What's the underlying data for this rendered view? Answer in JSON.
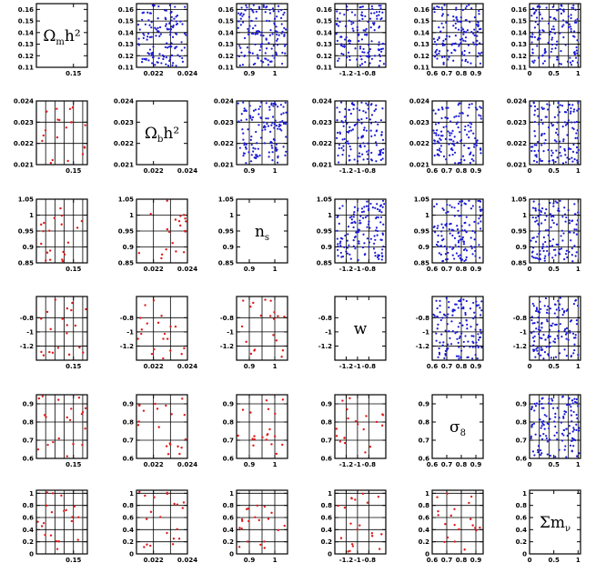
{
  "chart_data": {
    "type": "scatter",
    "grid": true,
    "parameters": [
      {
        "label": "Ωmh²",
        "range": [
          0.11,
          0.165
        ],
        "ticks": [
          0.11,
          0.12,
          0.13,
          0.14,
          0.15,
          0.16
        ],
        "tick_labels": [
          "0.11",
          "0.12",
          "0.13",
          "0.14",
          "0.15",
          "0.16"
        ],
        "x_ticks": [
          0.15
        ],
        "x_tick_labels": [
          "0.15"
        ]
      },
      {
        "label": "Ωbh²",
        "range": [
          0.021,
          0.024
        ],
        "ticks": [
          0.021,
          0.022,
          0.023,
          0.024
        ],
        "tick_labels": [
          "0.021",
          "0.022",
          "0.023",
          "0.024"
        ],
        "x_ticks": [
          0.022,
          0.024
        ],
        "x_tick_labels": [
          "0.022",
          "0.024"
        ]
      },
      {
        "label": "ns",
        "range": [
          0.85,
          1.05
        ],
        "ticks": [
          0.85,
          0.9,
          0.95,
          1,
          1.05
        ],
        "tick_labels": [
          "0.85",
          "0.9",
          "0.95",
          "1",
          "1.05"
        ],
        "x_ticks": [
          0.9,
          1
        ],
        "x_tick_labels": [
          "0.9",
          "1"
        ]
      },
      {
        "label": "w",
        "range": [
          -1.4,
          -0.5
        ],
        "ticks": [
          -1.2,
          -1,
          -0.8
        ],
        "tick_labels": [
          "-1.2",
          "-1",
          "-0.8"
        ],
        "x_ticks": [
          -1.2,
          -1,
          -0.8
        ],
        "x_tick_labels": [
          "-1.2",
          "-1",
          "-0.8"
        ]
      },
      {
        "label": "σ8",
        "range": [
          0.6,
          0.95
        ],
        "ticks": [
          0.6,
          0.7,
          0.8,
          0.9
        ],
        "tick_labels": [
          "0.6",
          "0.7",
          "0.8",
          "0.9"
        ],
        "x_ticks": [
          0.6,
          0.7,
          0.8,
          0.9
        ],
        "x_tick_labels": [
          "0.6",
          "0.7",
          "0.8",
          "0.9"
        ]
      },
      {
        "label": "Σmν",
        "range": [
          0,
          1.05
        ],
        "ticks": [
          0,
          0.2,
          0.4,
          0.6,
          0.8,
          1
        ],
        "tick_labels": [
          "0",
          "0.2",
          "0.4",
          "0.6",
          "0.8",
          "1"
        ],
        "x_ticks": [
          0,
          0.5,
          1
        ],
        "x_tick_labels": [
          "0",
          "0.5",
          "1"
        ]
      }
    ],
    "diagonal_labels": [
      {
        "main": "Ω",
        "sub": "m",
        "tail": "h²"
      },
      {
        "main": "Ω",
        "sub": "b",
        "tail": "h²"
      },
      {
        "main": "n",
        "sub": "s",
        "tail": ""
      },
      {
        "main": "w",
        "sub": "",
        "tail": ""
      },
      {
        "main": "σ",
        "sub": "8",
        "tail": ""
      },
      {
        "main": "Σm",
        "sub": "ν",
        "tail": ""
      }
    ],
    "upper_triangle": {
      "color": "#1a1ad6",
      "points_per_panel": 130
    },
    "lower_triangle": {
      "color": "#e01a1a",
      "points_per_panel": 20
    }
  }
}
